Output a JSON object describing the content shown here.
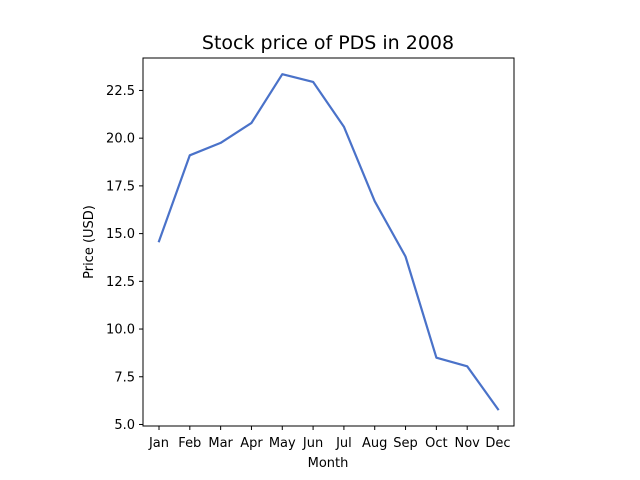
{
  "chart_data": {
    "type": "line",
    "title": "Stock price of PDS in 2008",
    "xlabel": "Month",
    "ylabel": "Price (USD)",
    "categories": [
      "Jan",
      "Feb",
      "Mar",
      "Apr",
      "May",
      "Jun",
      "Jul",
      "Aug",
      "Sep",
      "Oct",
      "Nov",
      "Dec"
    ],
    "series": [
      {
        "values": [
          14.6,
          19.1,
          19.75,
          20.8,
          23.35,
          22.95,
          20.6,
          16.7,
          13.8,
          8.5,
          8.05,
          5.8
        ],
        "color": "#4a72c9"
      }
    ],
    "yticks": [
      5.0,
      7.5,
      10.0,
      12.5,
      15.0,
      17.5,
      20.0,
      22.5
    ],
    "ytick_labels": [
      "5.0",
      "7.5",
      "10.0",
      "12.5",
      "15.0",
      "17.5",
      "20.0",
      "22.5"
    ],
    "ylim": [
      4.92,
      24.2
    ],
    "grid": false,
    "legend": "none"
  }
}
